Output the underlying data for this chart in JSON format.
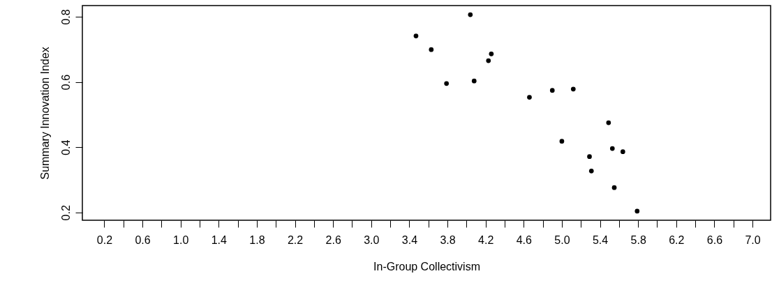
{
  "chart_data": {
    "type": "scatter",
    "xlabel": "In-Group Collectivism",
    "ylabel": "Summary Innovation Index",
    "x": [
      3.47,
      3.63,
      3.79,
      4.04,
      4.08,
      4.23,
      4.26,
      4.66,
      4.9,
      5.12,
      5.0,
      5.49,
      5.53,
      5.64,
      5.29,
      5.31,
      5.55,
      5.79
    ],
    "series": [
      {
        "color": "#000000",
        "values": [
          0.741,
          0.699,
          0.595,
          0.806,
          0.603,
          0.665,
          0.686,
          0.553,
          0.574,
          0.578,
          0.418,
          0.475,
          0.396,
          0.386,
          0.371,
          0.327,
          0.276,
          0.204
        ]
      }
    ],
    "marker": "circle",
    "grid": false,
    "xlim": [
      -0.03,
      7.19
    ],
    "ylim": [
      0.176,
      0.834
    ],
    "xticks": [
      0.2,
      {
        "value": 0.4,
        "label": null
      },
      {
        "value": 0.6,
        "label": "0.6"
      },
      {
        "value": 0.8,
        "label": null
      },
      {
        "value": 1.0,
        "label": "1.0"
      },
      {
        "value": 1.2,
        "label": null
      },
      {
        "value": 1.4,
        "label": "1.4"
      },
      {
        "value": 1.6,
        "label": null
      },
      {
        "value": 1.8,
        "label": "1.8"
      },
      {
        "value": 2.0,
        "label": null
      },
      {
        "value": 2.2,
        "label": "2.2"
      },
      {
        "value": 2.4,
        "label": null
      },
      {
        "value": 2.6,
        "label": "2.6"
      },
      {
        "value": 2.8,
        "label": null
      },
      {
        "value": 3.0,
        "label": "3.0"
      },
      {
        "value": 3.2,
        "label": null
      },
      {
        "value": 3.4,
        "label": "3.4"
      },
      {
        "value": 3.6,
        "label": null
      },
      {
        "value": 3.8,
        "label": "3.8"
      },
      {
        "value": 4.0,
        "label": null
      },
      {
        "value": 4.2,
        "label": "4.2"
      },
      {
        "value": 4.4,
        "label": null
      },
      {
        "value": 4.6,
        "label": "4.6"
      },
      {
        "value": 4.8,
        "label": null
      },
      {
        "value": 5.0,
        "label": "5.0"
      },
      {
        "value": 5.2,
        "label": null
      },
      {
        "value": 5.4,
        "label": "5.4"
      },
      {
        "value": 5.6,
        "label": null
      },
      {
        "value": 5.8,
        "label": "5.8"
      },
      {
        "value": 6.0,
        "label": null
      },
      {
        "value": 6.2,
        "label": "6.2"
      },
      {
        "value": 6.4,
        "label": null
      },
      {
        "value": 6.6,
        "label": "6.6"
      },
      {
        "value": 6.8,
        "label": null
      },
      {
        "value": 7.0,
        "label": "7.0"
      }
    ],
    "yticks": [
      0.2,
      0.4,
      0.6,
      0.8
    ]
  }
}
